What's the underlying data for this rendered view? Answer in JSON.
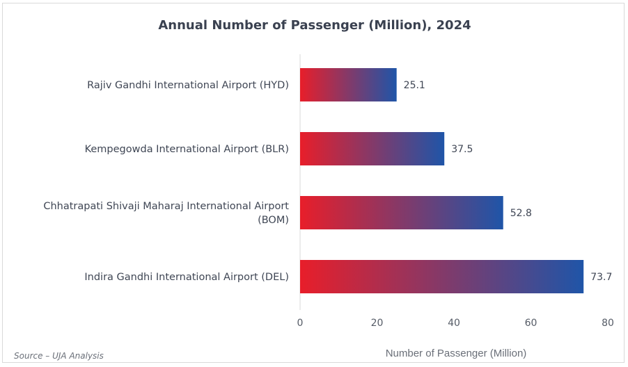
{
  "chart_data": {
    "type": "bar",
    "orientation": "horizontal",
    "title": "Annual Number of Passenger (Million), 2024",
    "categories": [
      [
        "Rajiv Gandhi International Airport (HYD)"
      ],
      [
        "Kempegowda International Airport (BLR)"
      ],
      [
        "Chhatrapati Shivaji Maharaj International Airport",
        "(BOM)"
      ],
      [
        "Indira Gandhi International Airport (DEL)"
      ]
    ],
    "values": [
      25.1,
      37.5,
      52.8,
      73.7
    ],
    "value_labels": [
      "25.1",
      "37.5",
      "52.8",
      "73.7"
    ],
    "xlabel": "Number of Passenger (Million)",
    "ylabel": "",
    "xlim": [
      0,
      80
    ],
    "xticks": [
      "0",
      "20",
      "40",
      "60",
      "80"
    ],
    "grid": false,
    "colors": {
      "gradient_start": "#e81e2a",
      "gradient_end": "#1f55a8"
    }
  },
  "source": "Source – UJA Analysis"
}
